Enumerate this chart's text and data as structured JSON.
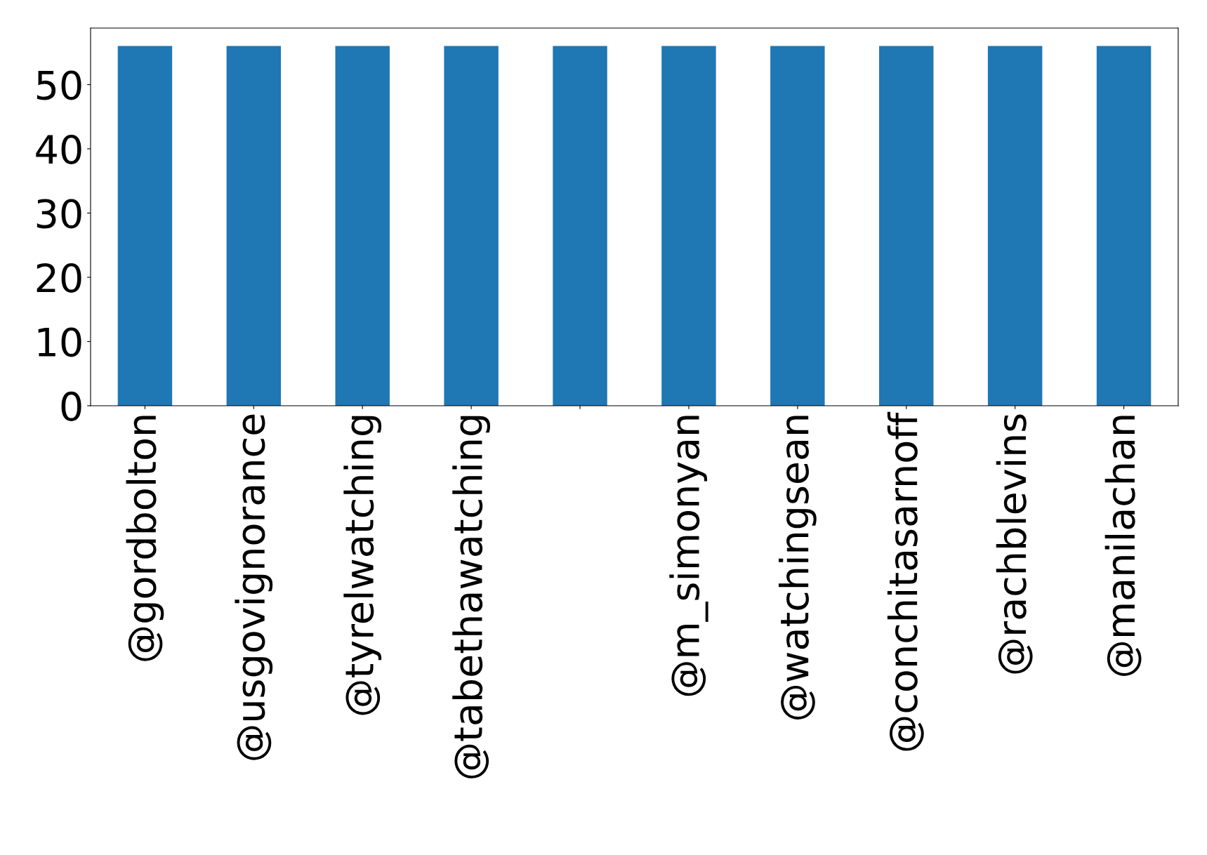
{
  "chart_data": {
    "type": "bar",
    "categories": [
      "@gordbolton",
      "@usgovignorance",
      "@tyrelwatching",
      "@tabethawatching",
      null,
      "@m_simonyan",
      "@watchingsean",
      "@conchitasarnoff",
      "@rachblevins",
      "@manilachan"
    ],
    "values": [
      56,
      56,
      56,
      56,
      56,
      56,
      56,
      56,
      56,
      56
    ],
    "color": "#1f77b4",
    "ylim": [
      0,
      58.8
    ],
    "yticks": [
      0,
      10,
      20,
      30,
      40,
      50
    ],
    "grid": false,
    "legend": false
  }
}
